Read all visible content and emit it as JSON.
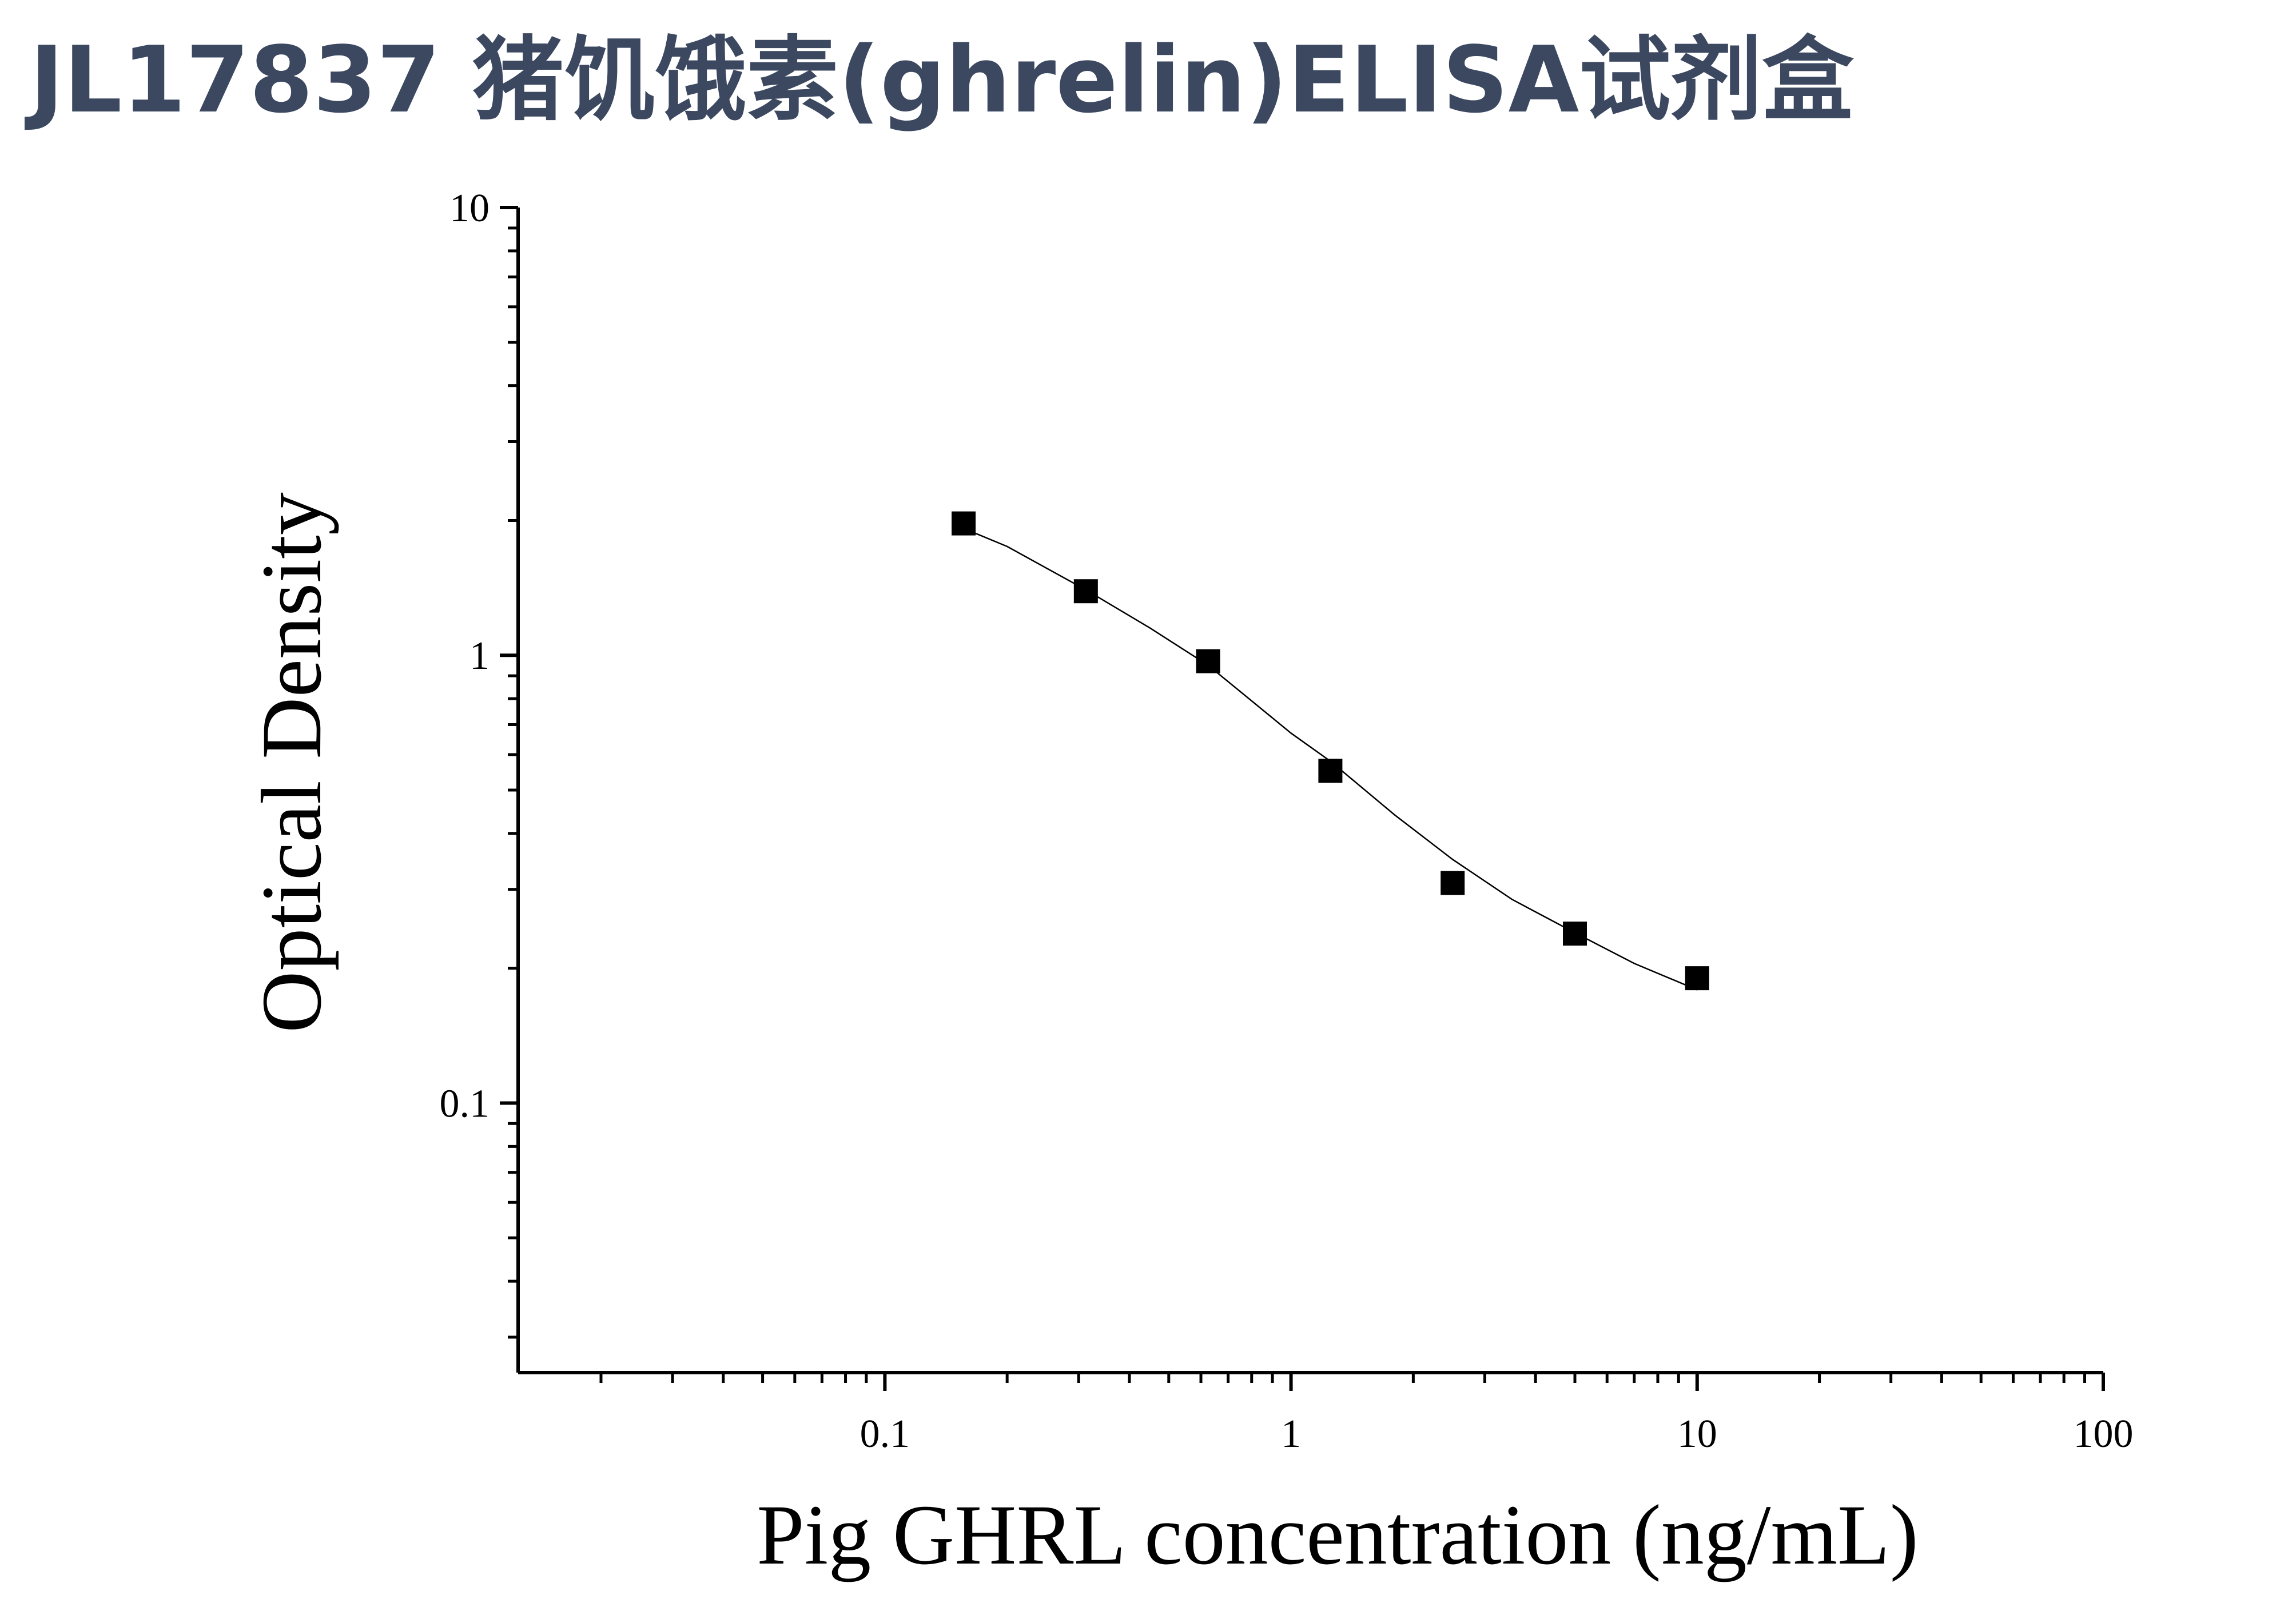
{
  "chart_data": {
    "type": "scatter",
    "title": "JL17837 猪饥饿素(ghrelin)ELISA试剂盒",
    "x_label": "Pig GHRL concentration (ng/mL)",
    "y_label": "Optical Density",
    "x_log": true,
    "y_log": true,
    "minor_ticks": true,
    "xlim": [
      0.0125,
      100
    ],
    "ylim": [
      0.025,
      10
    ],
    "xticks": [
      0.1,
      1,
      10,
      100
    ],
    "yticks": [
      0.1,
      1,
      10
    ],
    "series": [
      {
        "mode": "markers",
        "color": "#000000",
        "x": [
          0.15625,
          0.3125,
          0.625,
          1.25,
          2.5,
          5,
          10
        ],
        "values": [
          1.97,
          1.39,
          0.97,
          0.552,
          0.31,
          0.239,
          0.19
        ]
      },
      {
        "mode": "line",
        "color": "#000000",
        "x": [
          0.15,
          0.2,
          0.3125,
          0.45,
          0.625,
          1,
          1.25,
          1.8,
          2.5,
          3.5,
          5,
          7,
          10
        ],
        "values": [
          1.95,
          1.75,
          1.4,
          1.15,
          0.95,
          0.67,
          0.58,
          0.44,
          0.35,
          0.285,
          0.24,
          0.205,
          0.179
        ]
      }
    ]
  }
}
